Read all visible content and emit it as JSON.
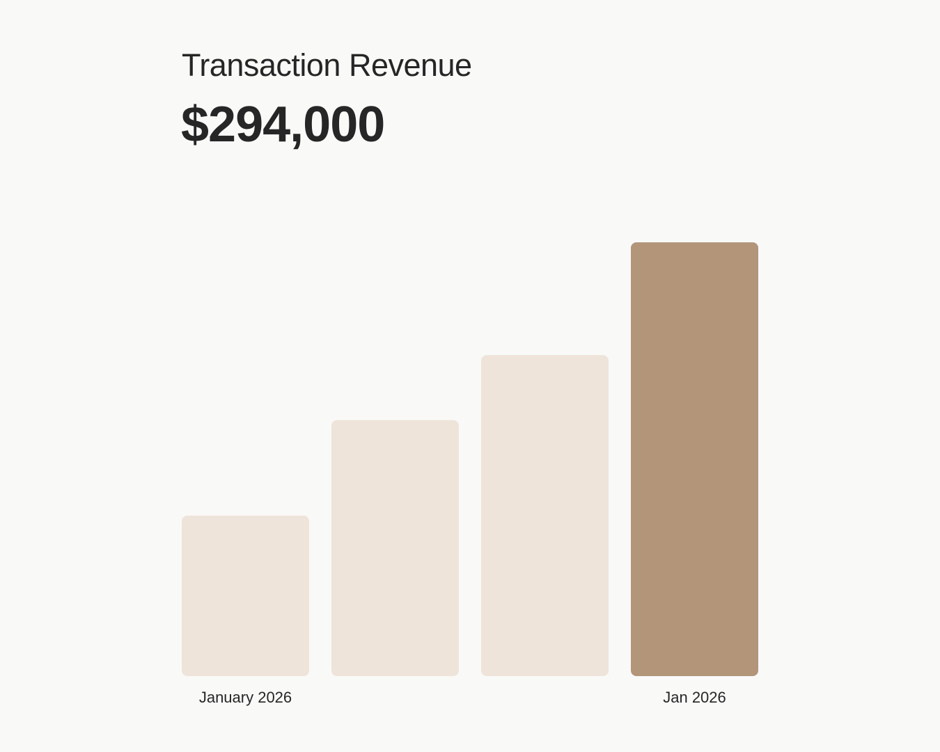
{
  "header": {
    "title": "Transaction Revenue",
    "total": "$294,000"
  },
  "chart_data": {
    "type": "bar",
    "title": "Transaction Revenue",
    "categories": [
      "January 2026",
      "",
      "",
      "Jan 2026"
    ],
    "values": [
      37,
      59,
      74,
      100
    ],
    "ylim": [
      0,
      100
    ],
    "xlabel": "",
    "ylabel": "",
    "grid": false,
    "colors": {
      "default": "#eee4d9",
      "highlight": "#b3957a"
    },
    "highlight_index": 3
  }
}
